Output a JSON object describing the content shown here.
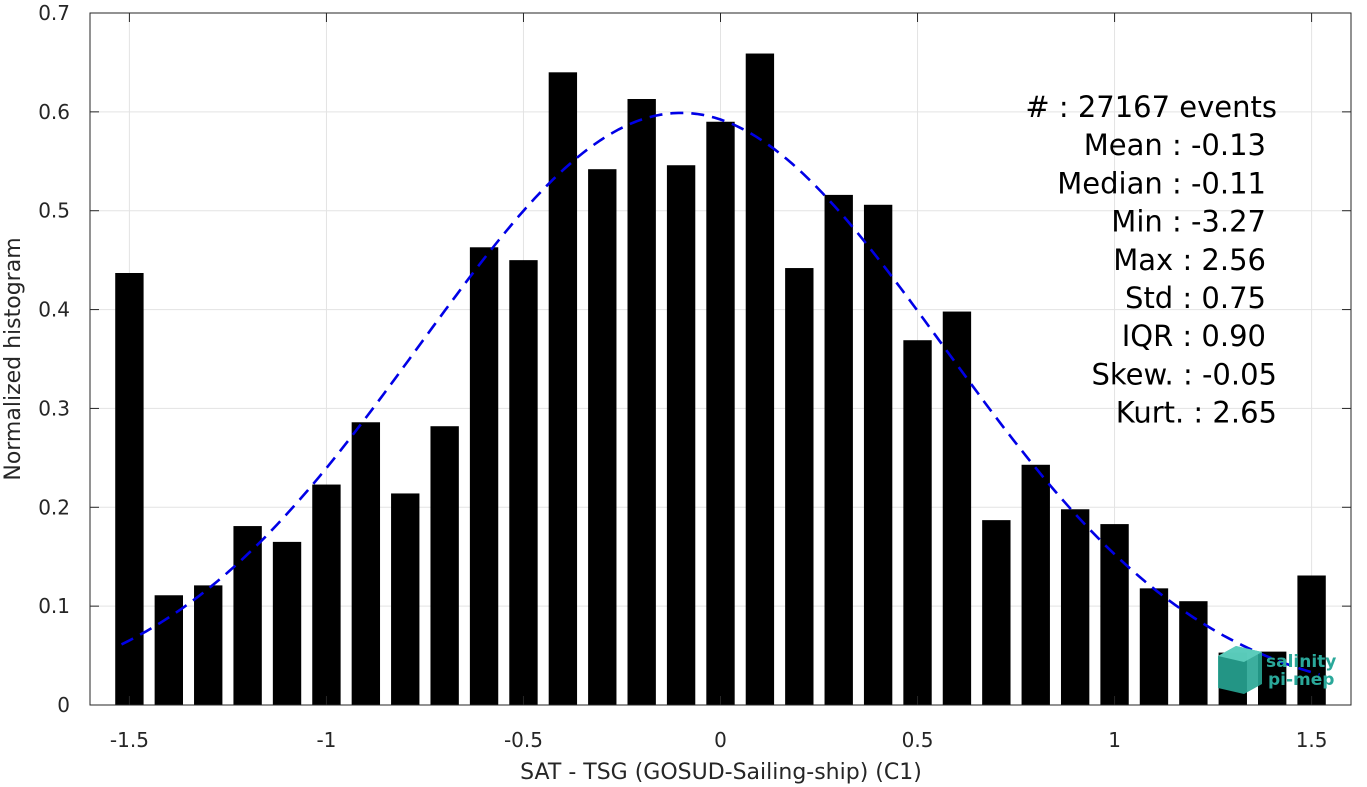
{
  "chart_data": {
    "type": "bar",
    "xlabel": "SAT - TSG (GOSUD-Sailing-ship) (C1)",
    "ylabel": "Normalized histogram",
    "xlim": [
      -1.6,
      1.6
    ],
    "ylim": [
      0,
      0.7
    ],
    "grid": true,
    "x_ticks": [
      -1.5,
      -1,
      -0.5,
      0,
      0.5,
      1,
      1.5
    ],
    "x_tick_labels": [
      "-1.5",
      "-1",
      "-0.5",
      "0",
      "0.5",
      "1",
      "1.5"
    ],
    "y_ticks": [
      0,
      0.1,
      0.2,
      0.3,
      0.4,
      0.5,
      0.6,
      0.7
    ],
    "y_tick_labels": [
      "0",
      "0.1",
      "0.2",
      "0.3",
      "0.4",
      "0.5",
      "0.6",
      "0.7"
    ],
    "bar_color": "#000000",
    "bin_width": 0.1,
    "x": [
      -1.5,
      -1.4,
      -1.3,
      -1.2,
      -1.1,
      -1.0,
      -0.9,
      -0.8,
      -0.7,
      -0.6,
      -0.5,
      -0.4,
      -0.3,
      -0.2,
      -0.1,
      0.0,
      0.1,
      0.2,
      0.3,
      0.4,
      0.5,
      0.6,
      0.7,
      0.8,
      0.9,
      1.0,
      1.1,
      1.2,
      1.3,
      1.4,
      1.5
    ],
    "values": [
      0.437,
      0.111,
      0.121,
      0.181,
      0.165,
      0.223,
      0.286,
      0.214,
      0.282,
      0.463,
      0.45,
      0.64,
      0.542,
      0.613,
      0.546,
      0.59,
      0.659,
      0.442,
      0.516,
      0.506,
      0.369,
      0.398,
      0.187,
      0.243,
      0.198,
      0.183,
      0.118,
      0.105,
      0.053,
      0.054,
      0.131
    ],
    "fit_curve": {
      "style": "dashed",
      "color": "#0000e6",
      "distribution": "normal",
      "mean": -0.1,
      "std": 0.665,
      "peak": 0.599,
      "x_range": [
        -1.52,
        1.52
      ]
    },
    "annotations": [
      "#  : 27167 events",
      "Mean : -0.13",
      "Median : -0.11",
      "Min : -3.27",
      "Max : 2.56",
      "Std : 0.75",
      "IQR : 0.90",
      "Skew. : -0.05",
      "Kurt. : 2.65"
    ]
  },
  "logo": {
    "line1": "salinity",
    "line2": "pi-mep",
    "color": "#2aa89a"
  }
}
